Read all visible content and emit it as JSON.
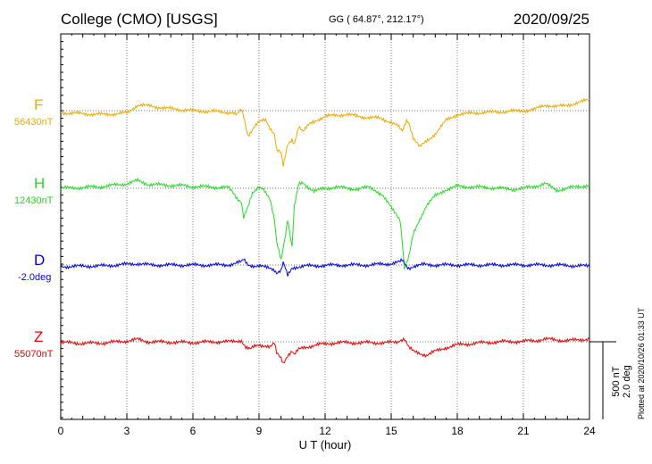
{
  "header": {
    "title": "College (CMO)  [USGS]",
    "coords": "GG ( 64.87°, 212.17°)",
    "date": "2020/09/25"
  },
  "stamp": "Plotted at 2020/10/26 01:33 UT",
  "scale": {
    "nt": "500 nT",
    "deg": "2.0 deg"
  },
  "chart_data": {
    "type": "line",
    "xlabel": "U T (hour)",
    "xlim": [
      0,
      24
    ],
    "xticks": [
      "0",
      "3",
      "6",
      "9",
      "12",
      "15",
      "18",
      "21",
      "24"
    ],
    "grid": true,
    "series": [
      {
        "name": "F",
        "baseline_label": "56430nT",
        "color": "#f0a800",
        "baseline_level": 0,
        "points": [
          [
            0,
            0.5
          ],
          [
            1,
            0.8
          ],
          [
            2,
            1.0
          ],
          [
            3,
            0.6
          ],
          [
            3.5,
            -1.5
          ],
          [
            4,
            -1.2
          ],
          [
            5,
            -0.5
          ],
          [
            6,
            0
          ],
          [
            7,
            0.2
          ],
          [
            7.8,
            0.5
          ],
          [
            8.0,
            1.2
          ],
          [
            8.2,
            -0.3
          ],
          [
            8.3,
            1.5
          ],
          [
            8.5,
            6.5
          ],
          [
            8.8,
            4.0
          ],
          [
            9.0,
            3.0
          ],
          [
            9.3,
            2.5
          ],
          [
            9.5,
            4.5
          ],
          [
            9.7,
            6.0
          ],
          [
            9.8,
            10.0
          ],
          [
            10.0,
            11.0
          ],
          [
            10.1,
            14.5
          ],
          [
            10.3,
            9.0
          ],
          [
            10.5,
            7.5
          ],
          [
            10.6,
            8.5
          ],
          [
            10.8,
            4.0
          ],
          [
            11.0,
            5.5
          ],
          [
            11.3,
            3.5
          ],
          [
            11.6,
            2.5
          ],
          [
            12.0,
            1.5
          ],
          [
            12.5,
            1.2
          ],
          [
            13.0,
            1.0
          ],
          [
            13.5,
            1.5
          ],
          [
            14.0,
            1.8
          ],
          [
            14.5,
            2.0
          ],
          [
            15.0,
            3.0
          ],
          [
            15.3,
            4.0
          ],
          [
            15.5,
            5.5
          ],
          [
            15.7,
            2.5
          ],
          [
            15.8,
            3.0
          ],
          [
            16.0,
            7.0
          ],
          [
            16.3,
            9.5
          ],
          [
            16.6,
            8.0
          ],
          [
            17.0,
            6.0
          ],
          [
            17.5,
            2.5
          ],
          [
            18.0,
            1.0
          ],
          [
            19,
            0.5
          ],
          [
            20,
            0.3
          ],
          [
            21,
            0
          ],
          [
            21.5,
            -0.3
          ],
          [
            22,
            -1.5
          ],
          [
            22.5,
            -1.0
          ],
          [
            23,
            -1.5
          ],
          [
            23.5,
            -2.0
          ],
          [
            24,
            -3.0
          ]
        ]
      },
      {
        "name": "H",
        "baseline_label": "12430nT",
        "color": "#22dd22",
        "baseline_level": 0,
        "points": [
          [
            0,
            0
          ],
          [
            1,
            -0.2
          ],
          [
            2,
            -0.5
          ],
          [
            3,
            -1.2
          ],
          [
            3.5,
            -2.0
          ],
          [
            4,
            -1.0
          ],
          [
            5,
            -0.8
          ],
          [
            6,
            -0.5
          ],
          [
            7,
            -0.3
          ],
          [
            7.6,
            -0.2
          ],
          [
            7.8,
            1.0
          ],
          [
            8.0,
            2.5
          ],
          [
            8.2,
            3.5
          ],
          [
            8.3,
            7.5
          ],
          [
            8.5,
            5.0
          ],
          [
            8.7,
            1.5
          ],
          [
            9.0,
            -0.5
          ],
          [
            9.2,
            0
          ],
          [
            9.5,
            3.0
          ],
          [
            9.7,
            8.5
          ],
          [
            9.8,
            14.0
          ],
          [
            10.0,
            18.5
          ],
          [
            10.2,
            12.0
          ],
          [
            10.3,
            8.0
          ],
          [
            10.5,
            15.5
          ],
          [
            10.6,
            5.0
          ],
          [
            10.8,
            -1.0
          ],
          [
            11.0,
            -1.5
          ],
          [
            11.2,
            -0.5
          ],
          [
            11.5,
            0.8
          ],
          [
            12,
            0
          ],
          [
            12.5,
            -0.3
          ],
          [
            13,
            0
          ],
          [
            13.5,
            0.2
          ],
          [
            14,
            -0.3
          ],
          [
            14.3,
            0.5
          ],
          [
            14.6,
            1.8
          ],
          [
            14.8,
            3.5
          ],
          [
            15.0,
            5.0
          ],
          [
            15.2,
            6.5
          ],
          [
            15.4,
            8.0
          ],
          [
            15.5,
            13.5
          ],
          [
            15.6,
            21.0
          ],
          [
            15.8,
            18.0
          ],
          [
            16.0,
            12.0
          ],
          [
            16.3,
            8.0
          ],
          [
            16.6,
            4.5
          ],
          [
            17.0,
            2.0
          ],
          [
            17.5,
            0.3
          ],
          [
            18,
            -0.5
          ],
          [
            19,
            -0.3
          ],
          [
            20,
            0
          ],
          [
            20.5,
            0.3
          ],
          [
            21,
            0
          ],
          [
            21.5,
            -0.5
          ],
          [
            22,
            -1.2
          ],
          [
            22.5,
            0.5
          ],
          [
            23,
            0
          ],
          [
            23.5,
            -0.5
          ],
          [
            24,
            -0.8
          ]
        ]
      },
      {
        "name": "D",
        "baseline_label": "-2.0deg",
        "color": "#0000ee",
        "baseline_level": 0,
        "points": [
          [
            0,
            0.4
          ],
          [
            1,
            0.3
          ],
          [
            2,
            0.2
          ],
          [
            3,
            -0.2
          ],
          [
            3.5,
            -0.4
          ],
          [
            4,
            0
          ],
          [
            5,
            0
          ],
          [
            6,
            0
          ],
          [
            7,
            0
          ],
          [
            7.7,
            -0.1
          ],
          [
            8.0,
            -0.5
          ],
          [
            8.2,
            -0.8
          ],
          [
            8.3,
            -1.5
          ],
          [
            8.5,
            -0.2
          ],
          [
            8.8,
            0.3
          ],
          [
            9.2,
            0.5
          ],
          [
            9.5,
            0.7
          ],
          [
            9.7,
            1.2
          ],
          [
            9.8,
            2.0
          ],
          [
            10.0,
            1.5
          ],
          [
            10.1,
            -0.5
          ],
          [
            10.2,
            1.0
          ],
          [
            10.3,
            2.8
          ],
          [
            10.5,
            0.8
          ],
          [
            10.7,
            0.5
          ],
          [
            11.0,
            0.3
          ],
          [
            12,
            0.1
          ],
          [
            13,
            0
          ],
          [
            14,
            0
          ],
          [
            14.5,
            -0.2
          ],
          [
            15.0,
            -0.4
          ],
          [
            15.2,
            -0.6
          ],
          [
            15.4,
            -0.8
          ],
          [
            15.5,
            -1.2
          ],
          [
            15.7,
            0.4
          ],
          [
            15.8,
            0.8
          ],
          [
            16.0,
            0.3
          ],
          [
            16.5,
            -0.1
          ],
          [
            17,
            0
          ],
          [
            18,
            0
          ],
          [
            19,
            0
          ],
          [
            20,
            0
          ],
          [
            21,
            0
          ],
          [
            22,
            0
          ],
          [
            23,
            0.1
          ],
          [
            24,
            0.3
          ]
        ]
      },
      {
        "name": "Z",
        "baseline_label": "55070nT",
        "color": "#ee0000",
        "baseline_level": 0,
        "points": [
          [
            0,
            0.2
          ],
          [
            1,
            0.4
          ],
          [
            2,
            0.3
          ],
          [
            3,
            -0.2
          ],
          [
            3.5,
            -0.6
          ],
          [
            4,
            0
          ],
          [
            5,
            0.1
          ],
          [
            6,
            0.2
          ],
          [
            7,
            0
          ],
          [
            7.7,
            0
          ],
          [
            8.0,
            -0.2
          ],
          [
            8.2,
            -0.4
          ],
          [
            8.4,
            1.5
          ],
          [
            8.6,
            2.0
          ],
          [
            8.8,
            1.2
          ],
          [
            9.0,
            0.8
          ],
          [
            9.3,
            1.0
          ],
          [
            9.5,
            1.4
          ],
          [
            9.7,
            0.5
          ],
          [
            9.8,
            3.0
          ],
          [
            10.0,
            4.2
          ],
          [
            10.1,
            5.5
          ],
          [
            10.3,
            3.5
          ],
          [
            10.5,
            2.5
          ],
          [
            10.6,
            3.5
          ],
          [
            10.8,
            2.0
          ],
          [
            11.0,
            1.5
          ],
          [
            11.5,
            1.0
          ],
          [
            12,
            0.5
          ],
          [
            12.5,
            0.3
          ],
          [
            13,
            0.2
          ],
          [
            13.5,
            0.3
          ],
          [
            14,
            0.2
          ],
          [
            14.5,
            0.3
          ],
          [
            15.0,
            0.2
          ],
          [
            15.3,
            0
          ],
          [
            15.4,
            -0.5
          ],
          [
            15.6,
            -0.8
          ],
          [
            15.8,
            1.5
          ],
          [
            16.0,
            2.5
          ],
          [
            16.3,
            3.0
          ],
          [
            16.6,
            3.5
          ],
          [
            17.0,
            2.5
          ],
          [
            17.5,
            1.5
          ],
          [
            18,
            0.8
          ],
          [
            19,
            0.3
          ],
          [
            20,
            0
          ],
          [
            21,
            -0.1
          ],
          [
            21.5,
            -0.3
          ],
          [
            22,
            -0.7
          ],
          [
            23,
            -0.3
          ],
          [
            23.5,
            -0.5
          ],
          [
            24,
            -0.8
          ]
        ]
      }
    ]
  }
}
